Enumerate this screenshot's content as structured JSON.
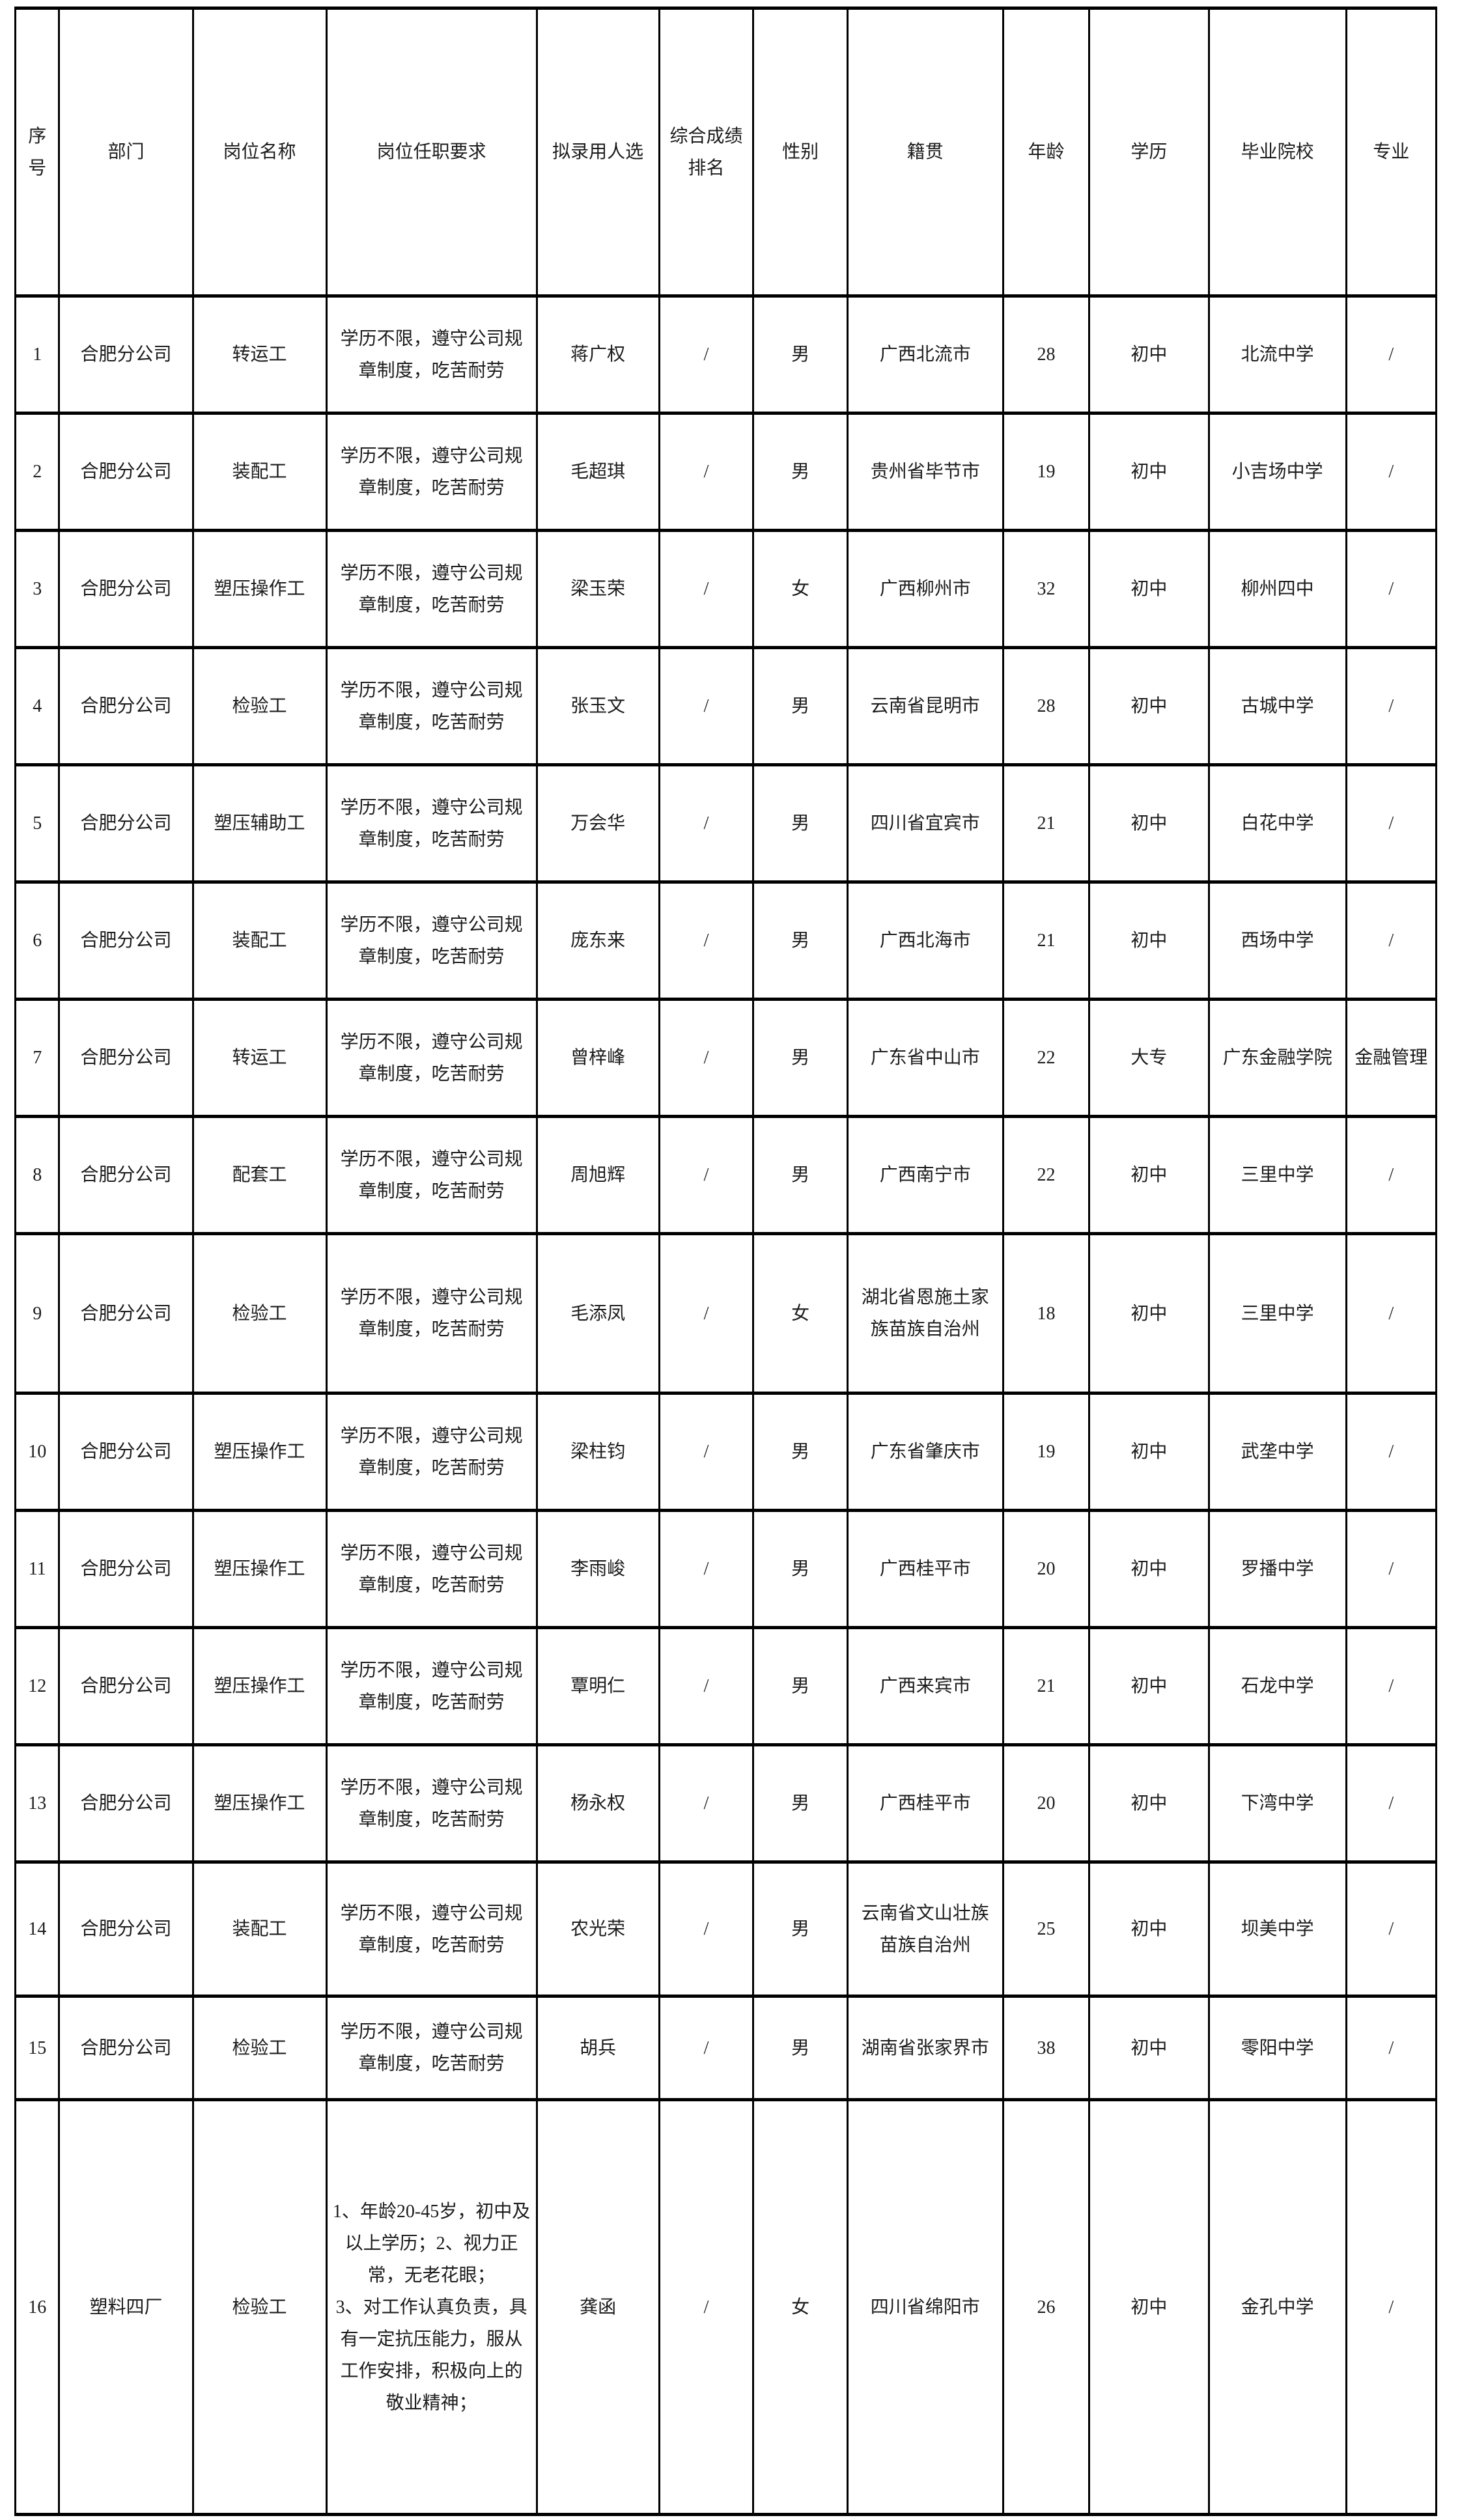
{
  "table": {
    "columns": [
      "序号",
      "部门",
      "岗位名称",
      "岗位任职要求",
      "拟录用人选",
      "综合成绩排名",
      "性别",
      "籍贯",
      "年龄",
      "学历",
      "毕业院校",
      "专业"
    ],
    "standard_requirement": "学历不限，遵守公司规章制度，吃苦耐劳",
    "rows": [
      [
        "1",
        "合肥分公司",
        "转运工",
        "学历不限，遵守公司规章制度，吃苦耐劳",
        "蒋广权",
        "/",
        "男",
        "广西北流市",
        "28",
        "初中",
        "北流中学",
        "/"
      ],
      [
        "2",
        "合肥分公司",
        "装配工",
        "学历不限，遵守公司规章制度，吃苦耐劳",
        "毛超琪",
        "/",
        "男",
        "贵州省毕节市",
        "19",
        "初中",
        "小吉场中学",
        "/"
      ],
      [
        "3",
        "合肥分公司",
        "塑压操作工",
        "学历不限，遵守公司规章制度，吃苦耐劳",
        "梁玉荣",
        "/",
        "女",
        "广西柳州市",
        "32",
        "初中",
        "柳州四中",
        "/"
      ],
      [
        "4",
        "合肥分公司",
        "检验工",
        "学历不限，遵守公司规章制度，吃苦耐劳",
        "张玉文",
        "/",
        "男",
        "云南省昆明市",
        "28",
        "初中",
        "古城中学",
        "/"
      ],
      [
        "5",
        "合肥分公司",
        "塑压辅助工",
        "学历不限，遵守公司规章制度，吃苦耐劳",
        "万会华",
        "/",
        "男",
        "四川省宜宾市",
        "21",
        "初中",
        "白花中学",
        "/"
      ],
      [
        "6",
        "合肥分公司",
        "装配工",
        "学历不限，遵守公司规章制度，吃苦耐劳",
        "庞东来",
        "/",
        "男",
        "广西北海市",
        "21",
        "初中",
        "西场中学",
        "/"
      ],
      [
        "7",
        "合肥分公司",
        "转运工",
        "学历不限，遵守公司规章制度，吃苦耐劳",
        "曾梓峰",
        "/",
        "男",
        "广东省中山市",
        "22",
        "大专",
        "广东金融学院",
        "金融管理"
      ],
      [
        "8",
        "合肥分公司",
        "配套工",
        "学历不限，遵守公司规章制度，吃苦耐劳",
        "周旭辉",
        "/",
        "男",
        "广西南宁市",
        "22",
        "初中",
        "三里中学",
        "/"
      ],
      [
        "9",
        "合肥分公司",
        "检验工",
        "学历不限，遵守公司规章制度，吃苦耐劳",
        "毛添凤",
        "/",
        "女",
        "湖北省恩施土家族苗族自治州",
        "18",
        "初中",
        "三里中学",
        "/"
      ],
      [
        "10",
        "合肥分公司",
        "塑压操作工",
        "学历不限，遵守公司规章制度，吃苦耐劳",
        "梁柱钧",
        "/",
        "男",
        "广东省肇庆市",
        "19",
        "初中",
        "武垄中学",
        "/"
      ],
      [
        "11",
        "合肥分公司",
        "塑压操作工",
        "学历不限，遵守公司规章制度，吃苦耐劳",
        "李雨峻",
        "/",
        "男",
        "广西桂平市",
        "20",
        "初中",
        "罗播中学",
        "/"
      ],
      [
        "12",
        "合肥分公司",
        "塑压操作工",
        "学历不限，遵守公司规章制度，吃苦耐劳",
        "覃明仁",
        "/",
        "男",
        "广西来宾市",
        "21",
        "初中",
        "石龙中学",
        "/"
      ],
      [
        "13",
        "合肥分公司",
        "塑压操作工",
        "学历不限，遵守公司规章制度，吃苦耐劳",
        "杨永权",
        "/",
        "男",
        "广西桂平市",
        "20",
        "初中",
        "下湾中学",
        "/"
      ],
      [
        "14",
        "合肥分公司",
        "装配工",
        "学历不限，遵守公司规章制度，吃苦耐劳",
        "农光荣",
        "/",
        "男",
        "云南省文山壮族苗族自治州",
        "25",
        "初中",
        "坝美中学",
        "/"
      ],
      [
        "15",
        "合肥分公司",
        "检验工",
        "学历不限，遵守公司规章制度，吃苦耐劳",
        "胡兵",
        "/",
        "男",
        "湖南省张家界市",
        "38",
        "初中",
        "零阳中学",
        "/"
      ],
      [
        "16",
        "塑料四厂",
        "检验工",
        "1、年龄20-45岁，初中及以上学历；2、视力正常，无老花眼；\n3、对工作认真负责，具有一定抗压能力，服从工作安排，积极向上的敬业精神；",
        "龚函",
        "/",
        "女",
        "四川省绵阳市",
        "26",
        "初中",
        "金孔中学",
        "/"
      ]
    ]
  }
}
